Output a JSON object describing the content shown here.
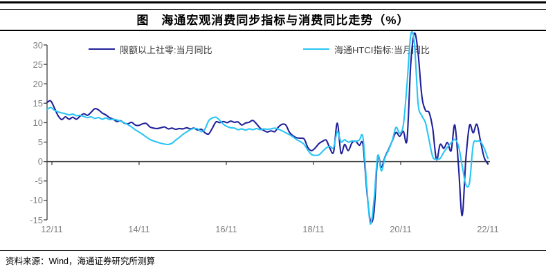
{
  "title": "图　海通宏观消费同步指标与消费同比走势（%）",
  "source": "资料来源：Wind，海通证券研究所测算",
  "colors": {
    "series_navy": "#20219A",
    "series_cyan": "#29C5F5",
    "axis": "#404040",
    "tick_label": "#7f7f7f",
    "rule": "#000000"
  },
  "chart_data": {
    "type": "line",
    "title": "海通宏观消费同步指标与消费同比走势（%）",
    "x_start": "2012/11",
    "x_end": "2022/11",
    "frequency": "monthly",
    "x_tick_labels": [
      "12/11",
      "14/11",
      "16/11",
      "18/11",
      "20/11",
      "22/11"
    ],
    "y_ticks": [
      30,
      25,
      20,
      15,
      10,
      5,
      0,
      -5,
      -10,
      -15
    ],
    "ylim": [
      -15,
      30
    ],
    "grid": "zero-line-only",
    "legend_position": "top",
    "series": [
      {
        "name": "限额以上社零:当月同比",
        "color": "#20219A",
        "values": [
          15.2,
          15.6,
          13.8,
          11.8,
          10.8,
          11.5,
          10.9,
          11.4,
          10.9,
          11.7,
          12.3,
          11.9,
          12.7,
          13.6,
          13.3,
          12.5,
          12.0,
          11.3,
          10.9,
          10.3,
          10.5,
          9.9,
          9.7,
          10.1,
          9.4,
          9.3,
          9.7,
          9.8,
          8.9,
          8.6,
          8.5,
          8.7,
          8.9,
          8.4,
          8.6,
          8.3,
          8.5,
          8.4,
          8.7,
          8.4,
          8.6,
          8.1,
          8.3,
          7.4,
          7.1,
          8.6,
          10.2,
          10.0,
          10.3,
          10.0,
          10.4,
          10.1,
          10.2,
          9.4,
          9.9,
          10.1,
          10.6,
          9.7,
          8.6,
          8.0,
          7.6,
          7.9,
          7.7,
          8.9,
          9.6,
          9.4,
          7.5,
          6.6,
          6.1,
          6.0,
          5.8,
          3.6,
          2.8,
          3.5,
          4.6,
          5.2,
          5.5,
          3.4,
          2.5,
          9.9,
          2.2,
          4.4,
          2.8,
          4.8,
          5.2,
          4.2,
          4.4,
          -7.0,
          -15.2,
          -13.0,
          1.0,
          -1.5,
          1.2,
          3.2,
          5.4,
          7.5,
          6.5,
          7.8,
          5.7,
          25.0,
          33.0,
          28.0,
          17.0,
          13.2,
          12.6,
          8.4,
          0.5,
          4.4,
          3.4,
          4.9,
          2.8,
          9.4,
          -1.0,
          -13.9,
          0.5,
          9.3,
          7.4,
          9.6,
          5.2,
          1.0,
          -0.6
        ]
      },
      {
        "name": "海通HTCI指标:当月同比",
        "color": "#29C5F5",
        "values": [
          13.4,
          13.9,
          13.2,
          12.8,
          12.5,
          12.3,
          12.0,
          12.2,
          11.8,
          11.9,
          11.6,
          11.3,
          11.5,
          11.1,
          11.3,
          10.9,
          11.2,
          10.8,
          10.9,
          10.7,
          10.4,
          10.0,
          9.5,
          8.9,
          8.2,
          7.6,
          7.0,
          6.3,
          5.7,
          5.3,
          5.0,
          4.7,
          4.5,
          4.4,
          4.7,
          5.5,
          6.2,
          7.0,
          7.6,
          8.2,
          8.5,
          8.4,
          7.7,
          8.4,
          10.5,
          11.2,
          11.4,
          10.6,
          9.6,
          9.0,
          8.7,
          8.6,
          8.2,
          8.4,
          8.1,
          8.4,
          8.2,
          8.5,
          8.2,
          8.4,
          8.3,
          8.4,
          8.6,
          8.3,
          7.9,
          7.4,
          6.9,
          6.3,
          5.6,
          5.1,
          4.4,
          2.9,
          1.8,
          1.6,
          1.7,
          2.6,
          3.5,
          3.9,
          3.6,
          7.7,
          5.1,
          5.6,
          5.0,
          5.3,
          5.2,
          5.5,
          6.2,
          -6.0,
          -16.0,
          -10.0,
          1.5,
          -2.4,
          1.0,
          3.0,
          5.5,
          8.8,
          7.3,
          9.5,
          20.0,
          32.5,
          30.5,
          15.0,
          11.8,
          10.0,
          5.5,
          1.2,
          0.6,
          0.8,
          2.4,
          3.7,
          4.8,
          5.7,
          4.0,
          -1.0,
          -5.9,
          -5.4,
          4.3,
          5.2,
          5.1,
          3.4,
          0.8
        ]
      }
    ]
  }
}
